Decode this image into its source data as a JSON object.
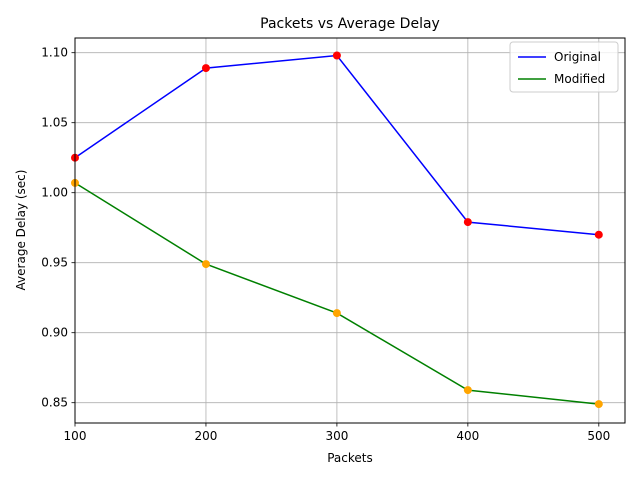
{
  "chart_data": {
    "type": "line",
    "title": "Packets vs Average Delay",
    "xlabel": "Packets",
    "ylabel": "Average Delay (sec)",
    "x": [
      100,
      200,
      300,
      400,
      500
    ],
    "xticks": [
      "100",
      "200",
      "300",
      "400",
      "500"
    ],
    "yticks": [
      "0.85",
      "0.90",
      "0.95",
      "1.00",
      "1.05",
      "1.10"
    ],
    "xlim": [
      100,
      520
    ],
    "ylim": [
      0.8355,
      1.1105
    ],
    "grid": true,
    "legend_position": "upper right",
    "series": [
      {
        "name": "Original",
        "line_color": "#0000ff",
        "marker_color": "#ff0000",
        "values": [
          1.025,
          1.089,
          1.098,
          0.979,
          0.97
        ]
      },
      {
        "name": "Modified",
        "line_color": "#008000",
        "marker_color": "#ffa500",
        "values": [
          1.007,
          0.949,
          0.914,
          0.859,
          0.849
        ]
      }
    ]
  }
}
